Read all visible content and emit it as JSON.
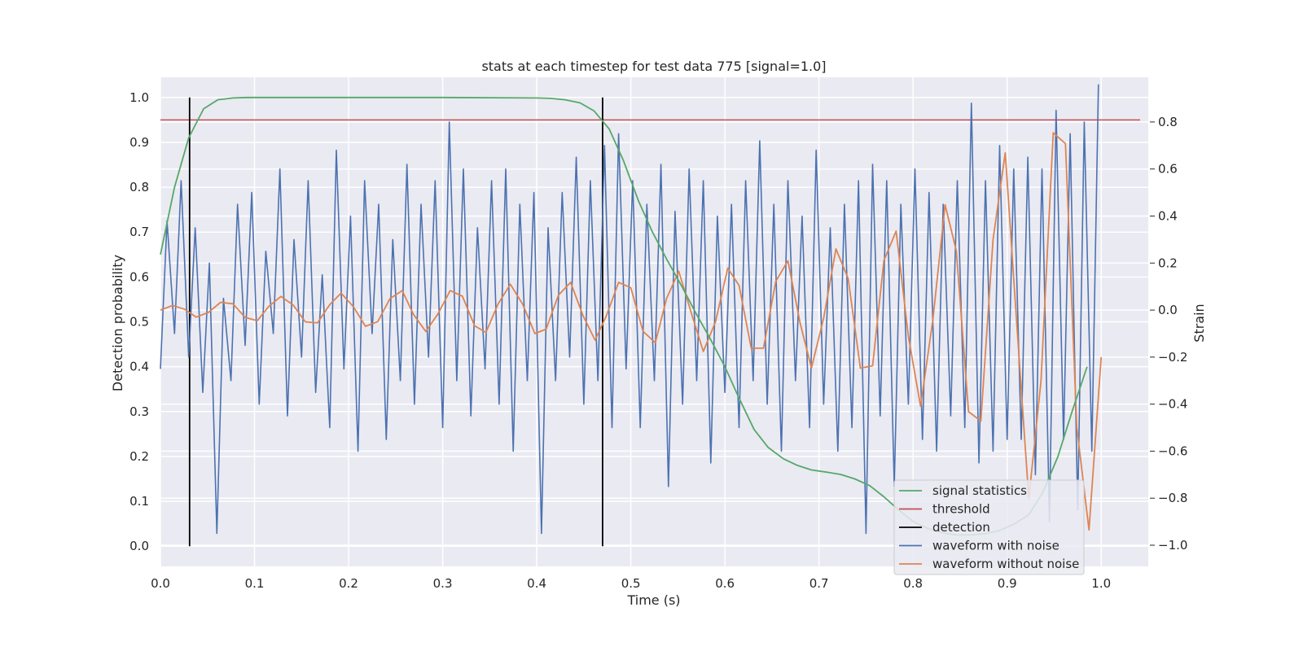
{
  "chart_data": {
    "type": "line",
    "title": "stats at each timestep for test data 775 [signal=1.0]",
    "xlabel": "Time (s)",
    "ylabel": "Detection probability",
    "y2label": "Strain",
    "xlim": [
      0.0,
      1.05
    ],
    "ylim": [
      -0.045,
      1.045
    ],
    "y2lim": [
      -1.09,
      0.99
    ],
    "xticks": [
      "0.0",
      "0.1",
      "0.2",
      "0.3",
      "0.4",
      "0.5",
      "0.6",
      "0.7",
      "0.8",
      "0.9",
      "1.0"
    ],
    "yticks": [
      "0.0",
      "0.1",
      "0.2",
      "0.3",
      "0.4",
      "0.5",
      "0.6",
      "0.7",
      "0.8",
      "0.9",
      "1.0"
    ],
    "y2ticks": [
      "−1.0",
      "−0.8",
      "−0.6",
      "−0.4",
      "−0.2",
      "0.0",
      "0.2",
      "0.4",
      "0.6",
      "0.8"
    ],
    "grid": true,
    "legend_placement": "lower-right",
    "colors": {
      "signal": "#55a868",
      "threshold": "#c44e52",
      "detection": "#000000",
      "noisy": "#4c72b0",
      "clean": "#dd8452",
      "background": "#eaeaf2",
      "grid": "#ffffff"
    },
    "legend": [
      {
        "label": "signal statistics",
        "key": "signal"
      },
      {
        "label": "threshold",
        "key": "threshold"
      },
      {
        "label": "detection",
        "key": "detection"
      },
      {
        "label": "waveform with noise",
        "key": "noisy"
      },
      {
        "label": "waveform without noise",
        "key": "clean"
      }
    ],
    "threshold": 0.95,
    "detections": [
      0.031,
      0.47
    ],
    "signal_statistics": {
      "x": [
        0.0,
        0.015,
        0.03,
        0.046,
        0.061,
        0.077,
        0.092,
        0.108,
        0.2,
        0.3,
        0.4,
        0.415,
        0.43,
        0.446,
        0.461,
        0.477,
        0.492,
        0.508,
        0.523,
        0.538,
        0.554,
        0.569,
        0.585,
        0.6,
        0.615,
        0.631,
        0.646,
        0.662,
        0.677,
        0.692,
        0.708,
        0.723,
        0.738,
        0.754,
        0.769,
        0.785,
        0.8,
        0.815,
        0.831,
        0.846,
        0.862,
        0.877,
        0.892,
        0.908,
        0.923,
        0.938,
        0.954,
        0.969,
        0.985
      ],
      "y": [
        0.65,
        0.8,
        0.91,
        0.975,
        0.995,
        0.999,
        1.0,
        1.0,
        1.0,
        1.0,
        0.999,
        0.998,
        0.995,
        0.988,
        0.97,
        0.93,
        0.86,
        0.77,
        0.7,
        0.64,
        0.58,
        0.52,
        0.46,
        0.4,
        0.33,
        0.26,
        0.22,
        0.195,
        0.18,
        0.17,
        0.165,
        0.16,
        0.15,
        0.135,
        0.11,
        0.08,
        0.055,
        0.04,
        0.03,
        0.025,
        0.025,
        0.028,
        0.035,
        0.05,
        0.07,
        0.12,
        0.2,
        0.3,
        0.4
      ]
    },
    "waveform_without_noise": {
      "x": [
        0.0,
        0.013,
        0.026,
        0.038,
        0.051,
        0.064,
        0.077,
        0.09,
        0.103,
        0.115,
        0.128,
        0.141,
        0.154,
        0.167,
        0.18,
        0.192,
        0.205,
        0.218,
        0.231,
        0.244,
        0.257,
        0.269,
        0.282,
        0.295,
        0.308,
        0.321,
        0.334,
        0.346,
        0.359,
        0.372,
        0.385,
        0.398,
        0.41,
        0.423,
        0.436,
        0.449,
        0.462,
        0.474,
        0.487,
        0.5,
        0.513,
        0.526,
        0.538,
        0.551,
        0.564,
        0.577,
        0.59,
        0.603,
        0.615,
        0.628,
        0.641,
        0.654,
        0.667,
        0.68,
        0.692,
        0.705,
        0.718,
        0.731,
        0.744,
        0.757,
        0.769,
        0.782,
        0.795,
        0.808,
        0.821,
        0.834,
        0.846,
        0.859,
        0.872,
        0.885,
        0.898,
        0.91,
        0.923,
        0.936,
        0.949,
        0.962,
        0.974,
        0.987,
        1.0
      ],
      "y": [
        0.0,
        0.02,
        0.003,
        -0.03,
        -0.01,
        0.033,
        0.027,
        -0.031,
        -0.045,
        0.015,
        0.058,
        0.022,
        -0.05,
        -0.054,
        0.023,
        0.072,
        0.015,
        -0.069,
        -0.049,
        0.049,
        0.083,
        -0.019,
        -0.091,
        -0.016,
        0.083,
        0.059,
        -0.067,
        -0.095,
        0.027,
        0.11,
        0.025,
        -0.1,
        -0.081,
        0.063,
        0.118,
        -0.022,
        -0.128,
        -0.024,
        0.118,
        0.095,
        -0.09,
        -0.139,
        0.049,
        0.165,
        -0.009,
        -0.176,
        -0.05,
        0.178,
        0.105,
        -0.162,
        -0.162,
        0.121,
        0.21,
        -0.057,
        -0.246,
        -0.034,
        0.26,
        0.134,
        -0.247,
        -0.237,
        0.211,
        0.336,
        -0.112,
        -0.409,
        -0.041,
        0.448,
        0.252,
        -0.432,
        -0.472,
        0.3,
        0.669,
        -0.047,
        -0.802,
        -0.301,
        0.754,
        0.708,
        -0.497,
        -0.935,
        -0.2
      ]
    },
    "waveform_with_noise": {
      "x": [
        0.0,
        0.007,
        0.015,
        0.022,
        0.03,
        0.037,
        0.045,
        0.052,
        0.06,
        0.067,
        0.075,
        0.082,
        0.09,
        0.097,
        0.105,
        0.112,
        0.12,
        0.127,
        0.135,
        0.142,
        0.15,
        0.157,
        0.165,
        0.172,
        0.18,
        0.187,
        0.195,
        0.202,
        0.21,
        0.217,
        0.225,
        0.232,
        0.24,
        0.247,
        0.255,
        0.262,
        0.27,
        0.277,
        0.285,
        0.292,
        0.3,
        0.307,
        0.315,
        0.322,
        0.33,
        0.337,
        0.345,
        0.352,
        0.36,
        0.367,
        0.375,
        0.382,
        0.39,
        0.397,
        0.405,
        0.412,
        0.42,
        0.427,
        0.435,
        0.442,
        0.45,
        0.457,
        0.465,
        0.472,
        0.48,
        0.487,
        0.495,
        0.502,
        0.51,
        0.517,
        0.525,
        0.532,
        0.54,
        0.547,
        0.555,
        0.562,
        0.57,
        0.577,
        0.585,
        0.592,
        0.6,
        0.607,
        0.615,
        0.622,
        0.63,
        0.637,
        0.645,
        0.652,
        0.66,
        0.667,
        0.675,
        0.682,
        0.69,
        0.697,
        0.705,
        0.712,
        0.72,
        0.727,
        0.735,
        0.742,
        0.75,
        0.757,
        0.765,
        0.772,
        0.78,
        0.787,
        0.795,
        0.802,
        0.81,
        0.817,
        0.825,
        0.832,
        0.84,
        0.847,
        0.855,
        0.862,
        0.87,
        0.877,
        0.885,
        0.892,
        0.9,
        0.907,
        0.915,
        0.922,
        0.93,
        0.937,
        0.945,
        0.952,
        0.96,
        0.967,
        0.975,
        0.982,
        0.99,
        0.997
      ],
      "y": [
        -0.25,
        0.38,
        -0.1,
        0.55,
        -0.2,
        0.35,
        -0.35,
        0.2,
        -0.95,
        0.05,
        -0.3,
        0.45,
        -0.15,
        0.5,
        -0.4,
        0.25,
        -0.1,
        0.6,
        -0.45,
        0.3,
        -0.2,
        0.55,
        -0.35,
        0.15,
        -0.5,
        0.68,
        -0.25,
        0.4,
        -0.6,
        0.55,
        -0.1,
        0.45,
        -0.55,
        0.3,
        -0.3,
        0.62,
        -0.4,
        0.45,
        -0.2,
        0.55,
        -0.5,
        0.8,
        -0.3,
        0.6,
        -0.45,
        0.35,
        -0.25,
        0.55,
        -0.4,
        0.6,
        -0.6,
        0.45,
        -0.3,
        0.5,
        -0.95,
        0.35,
        -0.3,
        0.5,
        -0.2,
        0.65,
        -0.4,
        0.55,
        -0.3,
        0.7,
        -0.5,
        0.75,
        -0.25,
        0.55,
        -0.5,
        0.45,
        -0.3,
        0.62,
        -0.75,
        0.42,
        -0.4,
        0.6,
        -0.3,
        0.55,
        -0.65,
        0.4,
        -0.35,
        0.45,
        -0.5,
        0.55,
        -0.3,
        0.72,
        -0.4,
        0.45,
        -0.6,
        0.55,
        -0.3,
        0.4,
        -0.5,
        0.68,
        -0.4,
        0.35,
        -0.6,
        0.45,
        -0.5,
        0.55,
        -0.95,
        0.62,
        -0.45,
        0.55,
        -0.75,
        0.45,
        -0.4,
        0.6,
        -0.55,
        0.5,
        -0.6,
        0.45,
        -0.45,
        0.55,
        -0.5,
        0.88,
        -0.65,
        0.55,
        -0.6,
        0.7,
        -0.55,
        0.6,
        -0.55,
        0.65,
        -0.7,
        0.6,
        -0.9,
        0.85,
        -0.55,
        0.75,
        -0.85,
        0.8,
        -0.6,
        0.96
      ]
    }
  }
}
